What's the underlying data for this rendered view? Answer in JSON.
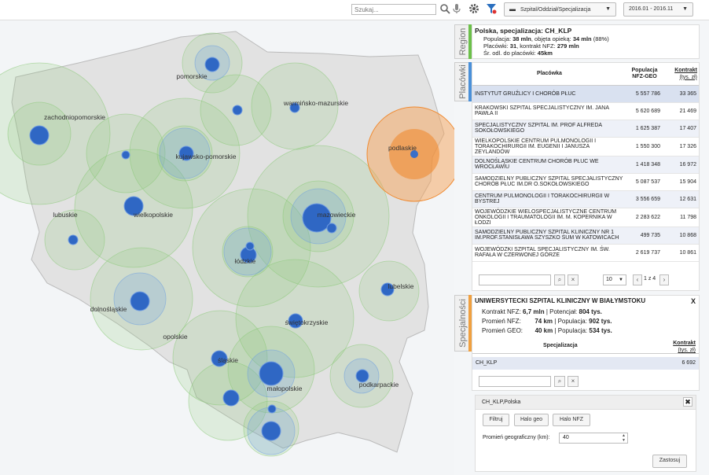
{
  "topbar": {
    "search_placeholder": "Szukaj...",
    "level_select": "Szpital/Oddział/Specjalizacja",
    "date_select": "2016.01 - 2016.11"
  },
  "map": {
    "regions": [
      "pomorskie",
      "warmińsko-mazurskie",
      "zachodniopomorskie",
      "kujawsko-pomorskie",
      "podlaskie",
      "lubuskie",
      "wielkopolskie",
      "mazowieckie",
      "łódzkie",
      "lubelskie",
      "dolnośląskie",
      "świętokrzyskie",
      "opolskie",
      "śląskie",
      "małopolskie",
      "podkarpackie"
    ],
    "colors": {
      "land": "#e4e4e4",
      "coverage": "#8cc97a",
      "marker": "#3a6fc9",
      "highlight": "#f5a35a"
    }
  },
  "region_panel": {
    "tab_label": "Region",
    "tab_color": "#6cc04a",
    "title": "Polska, specjalizacja: CH_KLP",
    "line1_label": "Populacja:",
    "line1_value": "38 mln",
    "line1_mid": ", objęta opieką:",
    "line1_value2": "34 mln",
    "line1_pct": "(88%)",
    "line2_label": "Placówki:",
    "line2_value": "31",
    "line2_mid": ", kontrakt NFZ:",
    "line2_value2": "279 mln",
    "line3_label": "Śr. odl. do placówki:",
    "line3_value": "45km"
  },
  "list_panel": {
    "tab_label": "Placówki",
    "tab_color": "#4a90d9",
    "col_name": "Placówka",
    "col_pop": "Populacja NFZ-GEO",
    "col_contract": "Kontrakt",
    "col_contract_unit": "(tys. zł)",
    "rows": [
      {
        "name": "INSTYTUT GRUŹLICY I CHORÓB PŁUC",
        "pop": "5 557 786",
        "contract": "33 365"
      },
      {
        "name": "KRAKOWSKI SZPITAL SPECJALISTYCZNY IM. JANA PAWŁA II",
        "pop": "5 620 689",
        "contract": "21 469"
      },
      {
        "name": "SPECJALISTYCZNY SZPITAL IM. PROF ALFREDA SOKOŁOWSKIEGO",
        "pop": "1 625 387",
        "contract": "17 407"
      },
      {
        "name": "WIELKOPOLSKIE CENTRUM PULMONOLOGII I TORAKOCHIRURGII IM. EUGENII I JANUSZA ZEYLANDÓW",
        "pop": "1 550 300",
        "contract": "17 326"
      },
      {
        "name": "DOLNOŚLĄSKIE CENTRUM CHORÓB PŁUC WE WROCŁAWIU",
        "pop": "1 418 348",
        "contract": "16 972"
      },
      {
        "name": "SAMODZIELNY PUBLICZNY SZPITAL SPECJALISTYCZNY CHORÓB PŁUC IM.DR O.SOKOŁOWSKIEGO",
        "pop": "5 087 537",
        "contract": "15 904"
      },
      {
        "name": "CENTRUM PULMONOLOGII I TORAKOCHIRURGII W BYSTREJ",
        "pop": "3 556 659",
        "contract": "12 631"
      },
      {
        "name": "WOJEWÓDZKIE WIELOSPECJALISTYCZNE CENTRUM ONKOLOGII I TRAUMATOLOGII IM. M. KOPERNIKA W ŁODZI",
        "pop": "2 283 622",
        "contract": "11 798"
      },
      {
        "name": "SAMODZIELNY PUBLICZNY SZPITAL KLINICZNY NR 1 IM.PROF.STANISŁAWA SZYSZKO ŚUM W KATOWICACH",
        "pop": "499 735",
        "contract": "10 868"
      },
      {
        "name": "WOJEWÓDZKI SZPITAL SPECJALISTYCZNY IM. ŚW. RAFAŁA W CZERWONEJ GÓRZE",
        "pop": "2 619 737",
        "contract": "10 861"
      }
    ],
    "page_size": "10",
    "page_info": "1 z 4"
  },
  "spec_panel": {
    "tab_label": "Specjalności",
    "tab_color": "#f0a040",
    "title": "UNIWERSYTECKI SZPITAL KLINICZNY W BIAŁYMSTOKU",
    "close": "X",
    "l1_label": "Kontrakt NFZ:",
    "l1_value": "6,7 mln",
    "l1_sep": "| Potencjał:",
    "l1_value2": "804 tys.",
    "l2_label": "Promień NFZ:",
    "l2_value": "74 km",
    "l2_sep": "| Populacja:",
    "l2_value2": "902 tys.",
    "l3_label": "Promień GEO:",
    "l3_value": "40 km",
    "l3_sep": "| Populacja:",
    "l3_value2": "534 tys.",
    "col_spec": "Specjalizacja",
    "col_contract": "Kontrakt",
    "col_contract_unit": "(tys. zł)",
    "row_spec": "CH_KLP",
    "row_contract": "6 692"
  },
  "filter_panel": {
    "title": "CH_KLP,Polska",
    "btn_filtruj": "Filtruj",
    "btn_halo_geo": "Halo geo",
    "btn_halo_nfz": "Halo NFZ",
    "radius_label": "Promień geograficzny (km):",
    "radius_value": "40",
    "apply": "Zastosuj"
  }
}
